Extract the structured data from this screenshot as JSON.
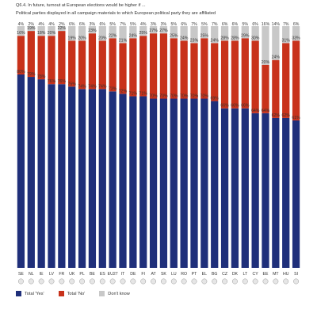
{
  "header": {
    "title": "Q6.4. In future, turnout at European elections would be higher if ...",
    "subtitle": "Political parties displayed in all campaign materials to which European political party they are affiliated"
  },
  "colors": {
    "yes": "#1f2f7a",
    "no": "#c8321b",
    "dk": "#c8c8c8"
  },
  "chart_data": {
    "type": "bar",
    "stacked": true,
    "categories": [
      "SE",
      "NL",
      "IE",
      "LV",
      "FR",
      "UK",
      "PL",
      "BE",
      "ES",
      "EU27",
      "IT",
      "DE",
      "FI",
      "AT",
      "SK",
      "LU",
      "RO",
      "PT",
      "EL",
      "BG",
      "CZ",
      "DK",
      "LT",
      "CY",
      "EE",
      "MT",
      "HU",
      "SI"
    ],
    "series": [
      {
        "name": "Total 'Yes'",
        "values": [
          80,
          79,
          78,
          76,
          76,
          75,
          74,
          74,
          74,
          73,
          72,
          71,
          71,
          70,
          70,
          70,
          70,
          70,
          70,
          69,
          66,
          66,
          66,
          64,
          64,
          62,
          62,
          61
        ]
      },
      {
        "name": "Total 'No'",
        "values": [
          16,
          19,
          18,
          20,
          22,
          19,
          20,
          23,
          20,
          22,
          21,
          24,
          25,
          27,
          27,
          25,
          24,
          23,
          25,
          24,
          28,
          28,
          29,
          30,
          20,
          24,
          31,
          33
        ]
      },
      {
        "name": "Don't know",
        "values": [
          4,
          2,
          4,
          4,
          2,
          6,
          6,
          3,
          6,
          5,
          7,
          5,
          4,
          3,
          3,
          5,
          6,
          7,
          5,
          7,
          6,
          6,
          5,
          6,
          16,
          14,
          7,
          6
        ]
      }
    ],
    "ylim": [
      0,
      100
    ],
    "grid": false,
    "legend": "bottom-left"
  },
  "legend": {
    "yes": "Total 'Yes'",
    "no": "Total 'No'",
    "dk": "Don't know"
  }
}
